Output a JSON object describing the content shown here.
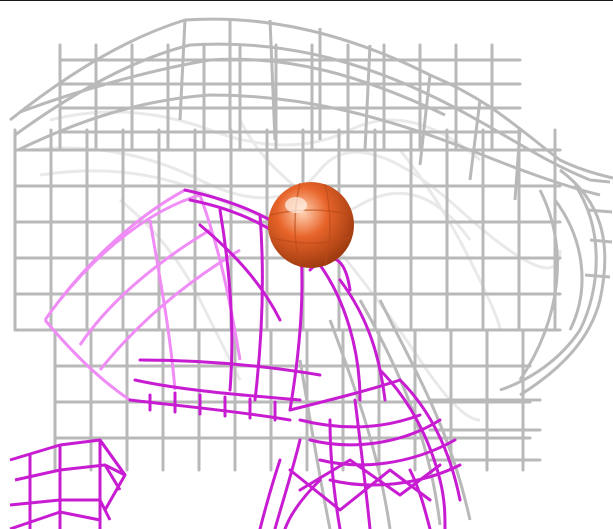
{
  "scene": {
    "background": "#ffffff",
    "density_mesh_grey": {
      "color": "#b9b9b9",
      "highlight": "#e9e9e9"
    },
    "density_mesh_magenta": {
      "color": "#c81cd2",
      "highlight": "#f08cf5"
    },
    "atom_sphere": {
      "color": "#e8642a",
      "shade": "#a13c10",
      "highlight": "#ffd3b4",
      "icon": "ion-sphere"
    }
  }
}
